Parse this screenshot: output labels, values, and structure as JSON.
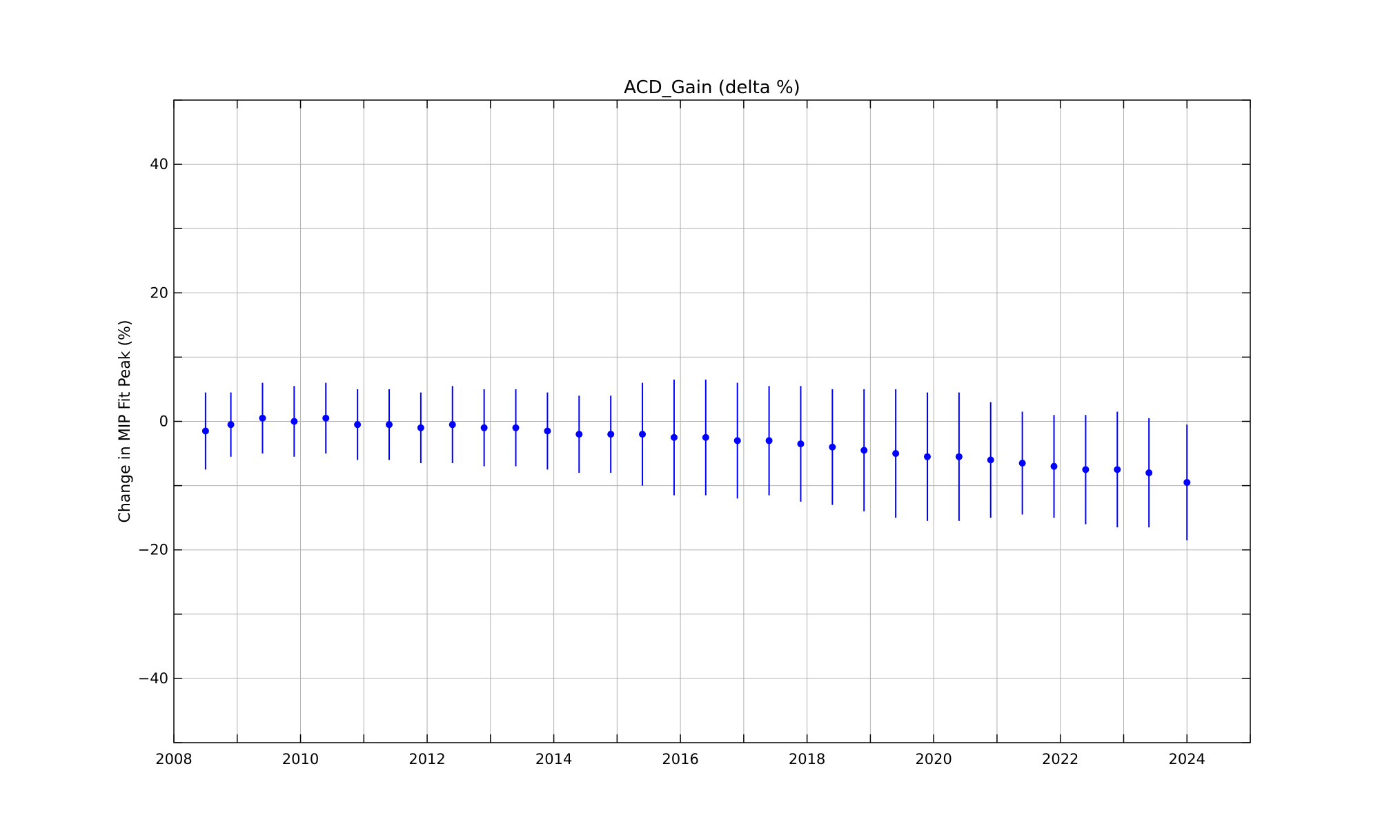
{
  "chart_data": {
    "type": "scatter",
    "title": "ACD_Gain (delta %)",
    "xlabel": "",
    "ylabel": "Change in MIP Fit Peak (%)",
    "xlim": [
      2008,
      2025
    ],
    "ylim": [
      -50,
      50
    ],
    "x_ticks": [
      2008,
      2010,
      2012,
      2014,
      2016,
      2018,
      2020,
      2022,
      2024
    ],
    "x_minor_ticks": [
      2009,
      2011,
      2013,
      2015,
      2017,
      2019,
      2021,
      2023,
      2025
    ],
    "y_ticks": [
      -40,
      -20,
      0,
      20,
      40
    ],
    "y_minor_ticks": [
      -50,
      -30,
      -10,
      10,
      30,
      50
    ],
    "grid": true,
    "marker_color": "#0000ff",
    "errorbar_color": "#0000ff",
    "series": [
      {
        "x": [
          2008.5,
          2008.9,
          2009.4,
          2009.9,
          2010.4,
          2010.9,
          2011.4,
          2011.9,
          2012.4,
          2012.9,
          2013.4,
          2013.9,
          2014.4,
          2014.9,
          2015.4,
          2015.9,
          2016.4,
          2016.9,
          2017.4,
          2017.9,
          2018.4,
          2018.9,
          2019.4,
          2019.9,
          2020.4,
          2020.9,
          2021.4,
          2021.9,
          2022.4,
          2022.9,
          2023.4,
          2024.0
        ],
        "y": [
          -1.5,
          -0.5,
          0.5,
          0.0,
          0.5,
          -0.5,
          -0.5,
          -1.0,
          -0.5,
          -1.0,
          -1.0,
          -1.5,
          -2.0,
          -2.0,
          -2.0,
          -2.5,
          -2.5,
          -3.0,
          -3.0,
          -3.5,
          -4.0,
          -4.5,
          -5.0,
          -5.5,
          -5.5,
          -6.0,
          -6.5,
          -7.0,
          -7.5,
          -7.5,
          -8.0,
          -9.5
        ],
        "yerr": [
          6.0,
          5.0,
          5.5,
          5.5,
          5.5,
          5.5,
          5.5,
          5.5,
          6.0,
          6.0,
          6.0,
          6.0,
          6.0,
          6.0,
          8.0,
          9.0,
          9.0,
          9.0,
          8.5,
          9.0,
          9.0,
          9.5,
          10.0,
          10.0,
          10.0,
          9.0,
          8.0,
          8.0,
          8.5,
          9.0,
          8.5,
          9.0
        ]
      }
    ]
  }
}
